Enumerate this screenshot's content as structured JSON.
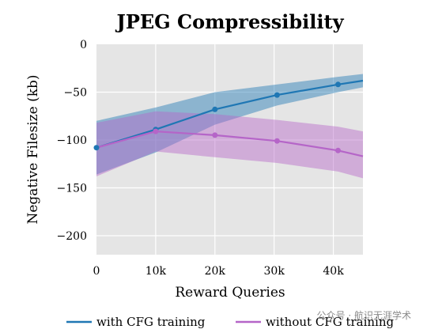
{
  "chart_data": {
    "type": "line",
    "title": "JPEG Compressibility",
    "xlabel": "Reward Queries",
    "ylabel": "Negative Filesize (kb)",
    "xlim": [
      0,
      45000
    ],
    "ylim": [
      -220,
      0
    ],
    "xticks": [
      0,
      10000,
      20000,
      30000,
      40000
    ],
    "xtick_labels": [
      "0",
      "10k",
      "20k",
      "30k",
      "40k"
    ],
    "yticks": [
      0,
      -50,
      -100,
      -150,
      -200
    ],
    "ytick_labels": [
      "0",
      "−50",
      "−100",
      "−150",
      "−200"
    ],
    "grid": true,
    "legend_position": "bottom",
    "series": [
      {
        "name": "with CFG training",
        "color": "#1f77b4",
        "x": [
          0,
          10000,
          20000,
          30500,
          40800,
          45000
        ],
        "y": [
          -108,
          -89,
          -68,
          -53,
          -42,
          -38
        ],
        "markers_x": [
          0,
          10000,
          20000,
          30500,
          40800
        ],
        "band_upper": [
          -80,
          -66,
          -50,
          -42,
          -34,
          -31
        ],
        "band_lower": [
          -136,
          -113,
          -84,
          -64,
          -50,
          -45
        ]
      },
      {
        "name": "without CFG training",
        "color": "#b565c8",
        "x": [
          0,
          10000,
          20000,
          30500,
          40800,
          45000
        ],
        "y": [
          -108,
          -91,
          -95,
          -101,
          -111,
          -117
        ],
        "markers_x": [
          10000,
          20000,
          30500,
          40800
        ],
        "band_upper": [
          -82,
          -70,
          -73,
          -79,
          -86,
          -91
        ],
        "band_lower": [
          -138,
          -112,
          -118,
          -124,
          -133,
          -140
        ]
      }
    ]
  },
  "watermark": "公众号 · 航识无涯学术"
}
